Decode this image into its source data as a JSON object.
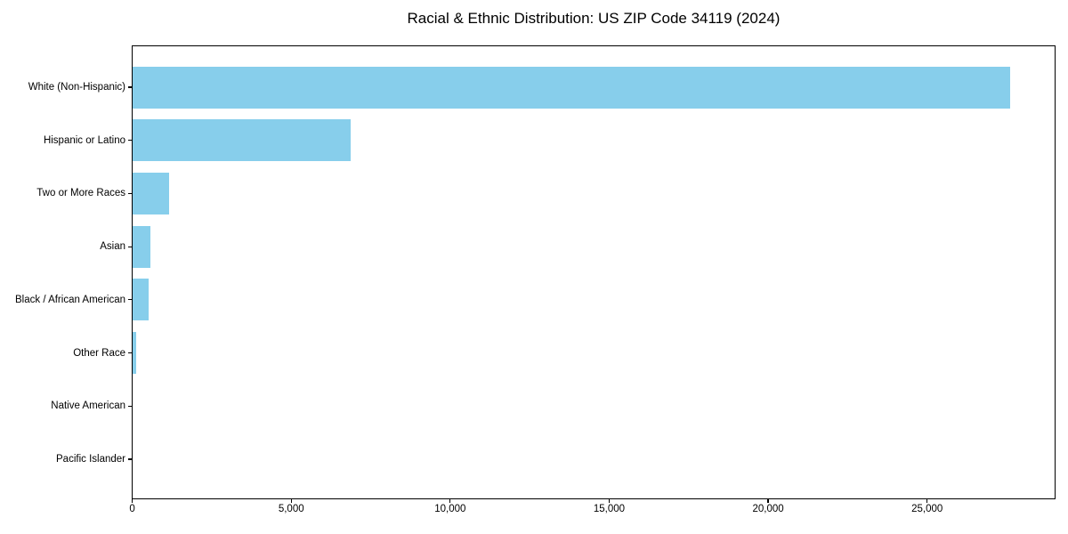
{
  "window": {
    "background": "#ffffff"
  },
  "chart_data": {
    "type": "bar",
    "orientation": "horizontal",
    "title": "Racial & Ethnic Distribution: US ZIP Code 34119 (2024)",
    "categories": [
      "White (Non-Hispanic)",
      "Hispanic or Latino",
      "Two or More Races",
      "Asian",
      "Black / African American",
      "Other Race",
      "Native American",
      "Pacific Islander"
    ],
    "values": [
      27600,
      6870,
      1150,
      560,
      495,
      110,
      0,
      0
    ],
    "x_ticks": [
      {
        "value": 0,
        "label": "0"
      },
      {
        "value": 5000,
        "label": "5,000"
      },
      {
        "value": 10000,
        "label": "10,000"
      },
      {
        "value": 15000,
        "label": "15,000"
      },
      {
        "value": 20000,
        "label": "20,000"
      },
      {
        "value": 25000,
        "label": "25,000"
      }
    ],
    "xlim": [
      0,
      29000
    ],
    "xlabel": "",
    "ylabel": "",
    "bar_color": "#87CEEB",
    "axis_color": "#000000",
    "text_color": "#000000",
    "background_color": "#ffffff",
    "grid": false,
    "legend": false
  }
}
